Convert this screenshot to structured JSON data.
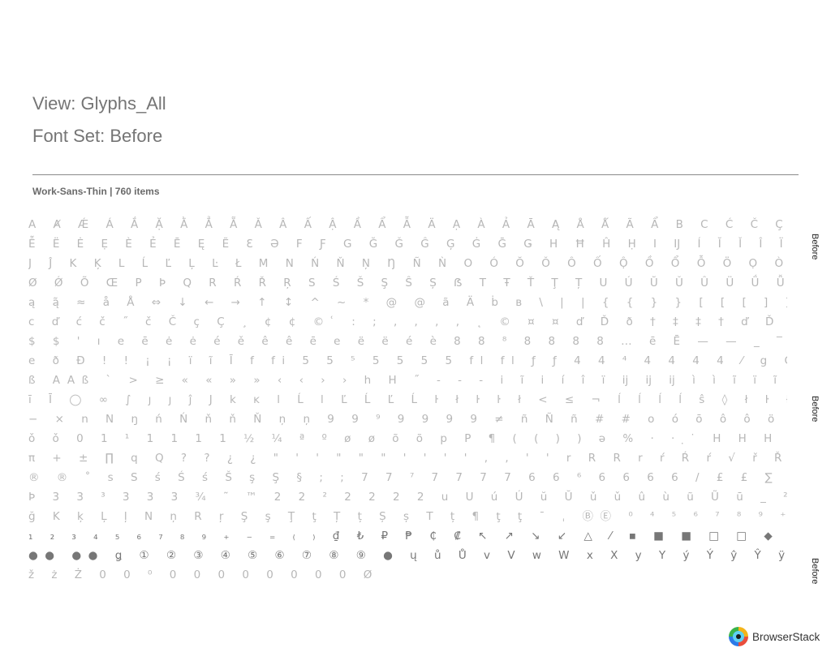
{
  "header": {
    "view_title": "View: Glyphs_All",
    "font_set_title": "Font Set: Before"
  },
  "section": {
    "meta": "Work-Sans-Thin | 760 items"
  },
  "glyph_rows": [
    "A Ⱥ Ǽ Á Ắ Ặ Ằ Ẳ Ẵ Ǎ Â Ấ Ậ Ầ Ẩ Ẫ Ä Ạ À Ả Ā Ą Å Ǻ Ã Ẩ B C Ć Č Ç Ĉ Ċ D Ď Đ E É Ĕ Ě Ê Ế Ệ Ề Ể",
    "Ễ Ë Ė Ẹ È Ẻ Ē Ę Ẽ Ɛ Ə F Ƒ G Ğ Ǧ Ĝ Ģ Ġ Ḡ Ǥ H Ħ Ĥ Ḥ I Ĳ Í Ĭ Ǐ Î Ï İ Ị Ì Ỉ Ī Į Ĩ",
    "J Ĵ K Ķ L Ĺ Ľ Ļ Ŀ Ł M N Ń Ň Ņ Ŋ Ñ Ǹ O Ó Ŏ Ǒ Ô Ố Ộ Ồ Ổ Ỗ Ö Ọ Ò Ỏ Ơ Ớ Ợ Ờ Ở Ỡ Ő Ō",
    "Ø Ǿ Õ Œ P Þ Q R Ŕ Ř Ŗ S Ś Š Ş Ŝ Ș ẞ T Ŧ Ť Ţ Ț U Ú Ŭ Ǔ Û Ü Ǘ Ǚ Ǜ Ǖ Ụ Ù Ủ Ư Ứ",
    "ą ą̃ ≈ å Å ⇔ ↓ ← → ↑ ↕ ^ ~ * @ @ ã Ä ḃ ʙ \\ | | { { } } [ [ [ ] ] ] ˇ ˘ ˙ c",
    "c ď ć č ˝ č Č ç Ç ¸ ¢ ¢ © ͑ : ; , , , , ˛ © ¤ ¤ ď Ď ð † ‡ ‡ † ď Ď ď ° ° ≡",
    "$ $ ' ı e ē ė ė é ě ê ê ē e ë ë é è 8 8 ⁸ 8 8 8 8 … ē Ē — — _ ‾ – – ‒ ˆ ę ę =",
    "e ð Đ ! ! ¡ ¡ ï ĩ Ī f fi 5 5 ⁵ 5 5 5 5 fl fl ƒ ƒ 4 4 ⁴ 4 4 4 4 ⁄ g G G g ğ Ğ Ğ ĝ ĝ",
    "ß AAß ` > ≥ « « » » ‹ ‹ › › h H ˝ ‐ - ‑ i ĩ i í î ï ĳ ĳ ĳ ì ì ĩ ï ĩ ì ì ĳ ĳ ĳ",
    "ī Ī ◯ ∞ ∫ ȷ ȷ ĵ J k ĸ l Ĺ l Ľ Ĺ Ľ Ĺ ŀ ł ŀ ŀ ł < ≤ ¬ ĺ ĺ ĺ ĺ ŝ ◊ ł ŀ ł m M ¯",
    "− × n N ŋ ń Ń ň ň Ň ņ ņ 9 9 ⁹ 9 9 9 9 ≠ ñ Ñ ñ # # o ó ō ô ô ö ö ö Ō œ Œ ˛ ò ò ò",
    "ǒ ǒ 0 1 ¹ 1 1 1 1 ½ ¼ ª º ø ø õ õ p P ¶ ( ( ) ) ə % · ‧ ̣ ̇ H H H H · . ‰",
    "π + ± ∏ q Q ? ? ¿ ¿ \" ' ' \" \" \" ' ' ' ' , , ' ' r R R r ŕ Ŕ ŕ √ ř Ř ř r",
    "® ® ˚ s S ś Ś ś Š ş Ş § ; ; 7 7 ⁷ 7 7 7 7 6 6 ⁶ 6 6 6 6 / £ £ ∑ t T ŧ ť Ť ţ þ",
    "Þ 3 3 ³ 3 3 3 ¾ ˜ ™ 2 2 ² 2 2 2 2 u U ú Ú ŭ Ŭ ǔ ǔ û ù ũ Ũ ū _ ² ³ μ ¹ G",
    "ğ K ķ Ļ ļ N ņ R ŗ Ş ş Ţ ţ Ț ț Ș ș T ț ¶ ţ ţ ¯ ˌ ⒷⒺ ⁰ ⁴ ⁵ ⁶ ⁷ ⁸ ⁹ ⁺ ⁻ ⁼ ⁽ ⁾ ⁰",
    "₁ ₂ ₃ ₄ ₅ ₆ ₇ ₈ ₉ ₊ ₋ ₌ ₍ ₎ ₫ ₺ ₽ ₱ ₵ ₡ ↖ ↗ ↘ ↙ △ ⁄ ▪ ■ ■ □ □ ◆ ◆ ◇ ◇ ● ● ● ●",
    "●● ●● ǥ ① ② ③ ④ ⑤ ⑥ ⑦ ⑧ ⑨ ● ų ů Ů v V w W x X y Y ý Ý ŷ Ŷ ÿ Ÿ ỹ ¥ ¥ z Z ź Ź ž Ž",
    "ž ż Ż 0 0 ⁰ 0 0 0 0 0 0 0 0 Ø"
  ],
  "side_labels": [
    "Before",
    "Before",
    "Before"
  ],
  "brand": {
    "name": "BrowserStack"
  }
}
